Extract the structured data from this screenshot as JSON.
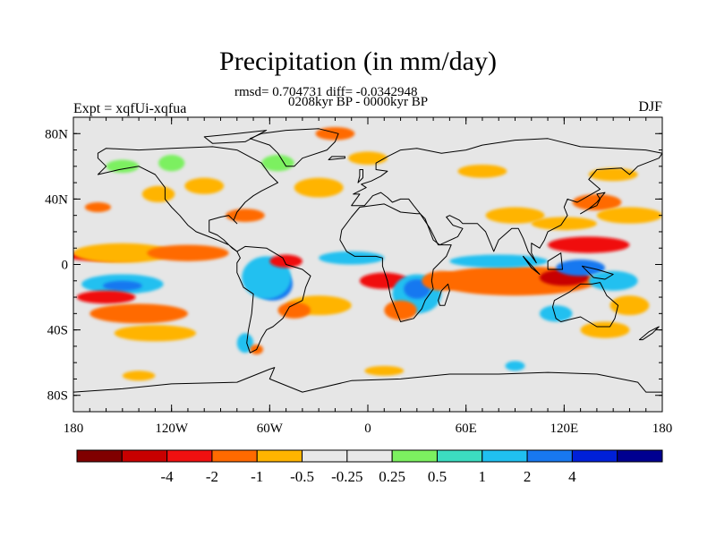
{
  "header": {
    "title": "Precipitation (in mm/day)",
    "stats": "rmsd= 0.704731 diff= -0.0342948",
    "subtitle": "0208kyr BP - 0000kyr BP",
    "left_label": "Expt = xqfUi-xqfua",
    "right_label": "DJF"
  },
  "map": {
    "projection": "cylindrical-equidistant",
    "lon_range": [
      -180,
      180
    ],
    "lat_range": [
      -90,
      90
    ],
    "x_ticks": [
      {
        "value": -180,
        "label": "180"
      },
      {
        "value": -120,
        "label": "120W"
      },
      {
        "value": -60,
        "label": "60W"
      },
      {
        "value": 0,
        "label": "0"
      },
      {
        "value": 60,
        "label": "60E"
      },
      {
        "value": 120,
        "label": "120E"
      },
      {
        "value": 180,
        "label": "180"
      }
    ],
    "y_ticks": [
      {
        "value": 80,
        "label": "80N"
      },
      {
        "value": 40,
        "label": "40N"
      },
      {
        "value": 0,
        "label": "0"
      },
      {
        "value": -40,
        "label": "40S"
      },
      {
        "value": -80,
        "label": "80S"
      }
    ],
    "background_color": "#e6e6e6",
    "coastline_color": "#000000"
  },
  "colorbar": {
    "colors": [
      "#800000",
      "#c80000",
      "#f01010",
      "#ff6a00",
      "#ffb400",
      "#e8e8e8",
      "#e8e8e8",
      "#7cf060",
      "#3cdcc0",
      "#20c0f0",
      "#1878f0",
      "#0020d8",
      "#000090"
    ],
    "labels": [
      "-4",
      "-2",
      "-1",
      "-0.5",
      "-0.25",
      "0.25",
      "0.5",
      "1",
      "2",
      "4"
    ]
  },
  "anomalies": [
    {
      "color": "#f01010",
      "lon": -160,
      "lat": 5,
      "rx": 25,
      "ry": 3
    },
    {
      "color": "#ffb400",
      "lon": -150,
      "lat": 7,
      "rx": 30,
      "ry": 6
    },
    {
      "color": "#ff6a00",
      "lon": -110,
      "lat": 7,
      "rx": 25,
      "ry": 5
    },
    {
      "color": "#20c0f0",
      "lon": -150,
      "lat": -12,
      "rx": 25,
      "ry": 6
    },
    {
      "color": "#1878f0",
      "lon": -150,
      "lat": -13,
      "rx": 12,
      "ry": 3
    },
    {
      "color": "#f01010",
      "lon": -160,
      "lat": -20,
      "rx": 18,
      "ry": 4
    },
    {
      "color": "#ff6a00",
      "lon": -140,
      "lat": -30,
      "rx": 30,
      "ry": 6
    },
    {
      "color": "#ffb400",
      "lon": -130,
      "lat": -42,
      "rx": 25,
      "ry": 5
    },
    {
      "color": "#ff6a00",
      "lon": -165,
      "lat": 35,
      "rx": 8,
      "ry": 3
    },
    {
      "color": "#ffb400",
      "lon": -128,
      "lat": 43,
      "rx": 10,
      "ry": 5
    },
    {
      "color": "#7cf060",
      "lon": -150,
      "lat": 60,
      "rx": 10,
      "ry": 4
    },
    {
      "color": "#7cf060",
      "lon": -120,
      "lat": 62,
      "rx": 8,
      "ry": 5
    },
    {
      "color": "#ffb400",
      "lon": -100,
      "lat": 48,
      "rx": 12,
      "ry": 5
    },
    {
      "color": "#ff6a00",
      "lon": -75,
      "lat": 30,
      "rx": 12,
      "ry": 4
    },
    {
      "color": "#7cf060",
      "lon": -55,
      "lat": 62,
      "rx": 10,
      "ry": 5
    },
    {
      "color": "#ffb400",
      "lon": -30,
      "lat": 47,
      "rx": 15,
      "ry": 6
    },
    {
      "color": "#ff6a00",
      "lon": -20,
      "lat": 80,
      "rx": 12,
      "ry": 4
    },
    {
      "color": "#ffb400",
      "lon": 0,
      "lat": 65,
      "rx": 12,
      "ry": 4
    },
    {
      "color": "#1878f0",
      "lon": -58,
      "lat": -12,
      "rx": 12,
      "ry": 10
    },
    {
      "color": "#20c0f0",
      "lon": -62,
      "lat": -8,
      "rx": 15,
      "ry": 13
    },
    {
      "color": "#f01010",
      "lon": -50,
      "lat": 2,
      "rx": 10,
      "ry": 4
    },
    {
      "color": "#ffb400",
      "lon": -30,
      "lat": -25,
      "rx": 20,
      "ry": 6
    },
    {
      "color": "#ff6a00",
      "lon": -45,
      "lat": -28,
      "rx": 10,
      "ry": 5
    },
    {
      "color": "#f01010",
      "lon": 10,
      "lat": -10,
      "rx": 15,
      "ry": 5
    },
    {
      "color": "#20c0f0",
      "lon": -10,
      "lat": 4,
      "rx": 20,
      "ry": 4
    },
    {
      "color": "#20c0f0",
      "lon": 30,
      "lat": -18,
      "rx": 15,
      "ry": 12
    },
    {
      "color": "#1878f0",
      "lon": 30,
      "lat": -15,
      "rx": 8,
      "ry": 6
    },
    {
      "color": "#ff6a00",
      "lon": 20,
      "lat": -28,
      "rx": 10,
      "ry": 6
    },
    {
      "color": "#ff6a00",
      "lon": 45,
      "lat": -10,
      "rx": 12,
      "ry": 6
    },
    {
      "color": "#f01010",
      "lon": 90,
      "lat": -10,
      "rx": 45,
      "ry": 6
    },
    {
      "color": "#ff6a00",
      "lon": 90,
      "lat": -10,
      "rx": 50,
      "ry": 9
    },
    {
      "color": "#c80000",
      "lon": 120,
      "lat": -8,
      "rx": 15,
      "ry": 5
    },
    {
      "color": "#20c0f0",
      "lon": 80,
      "lat": 2,
      "rx": 30,
      "ry": 4
    },
    {
      "color": "#1878f0",
      "lon": 130,
      "lat": -2,
      "rx": 15,
      "ry": 5
    },
    {
      "color": "#f01010",
      "lon": 135,
      "lat": 12,
      "rx": 25,
      "ry": 5
    },
    {
      "color": "#ffb400",
      "lon": 120,
      "lat": 25,
      "rx": 20,
      "ry": 4
    },
    {
      "color": "#ff6a00",
      "lon": 140,
      "lat": 38,
      "rx": 15,
      "ry": 5
    },
    {
      "color": "#ffb400",
      "lon": 160,
      "lat": 30,
      "rx": 20,
      "ry": 5
    },
    {
      "color": "#ffb400",
      "lon": 145,
      "lat": -40,
      "rx": 15,
      "ry": 5
    },
    {
      "color": "#ffb400",
      "lon": 90,
      "lat": 30,
      "rx": 18,
      "ry": 5
    },
    {
      "color": "#20c0f0",
      "lon": 115,
      "lat": -30,
      "rx": 10,
      "ry": 5
    },
    {
      "color": "#ffb400",
      "lon": 160,
      "lat": -25,
      "rx": 12,
      "ry": 6
    },
    {
      "color": "#20c0f0",
      "lon": 150,
      "lat": -10,
      "rx": 15,
      "ry": 6
    },
    {
      "color": "#20c0f0",
      "lon": -75,
      "lat": -48,
      "rx": 5,
      "ry": 6
    },
    {
      "color": "#ff6a00",
      "lon": -68,
      "lat": -52,
      "rx": 4,
      "ry": 3
    },
    {
      "color": "#ffb400",
      "lon": 70,
      "lat": 57,
      "rx": 15,
      "ry": 4
    },
    {
      "color": "#ffb400",
      "lon": 10,
      "lat": -65,
      "rx": 12,
      "ry": 3
    },
    {
      "color": "#ffb400",
      "lon": -140,
      "lat": -68,
      "rx": 10,
      "ry": 3
    },
    {
      "color": "#20c0f0",
      "lon": 90,
      "lat": -62,
      "rx": 6,
      "ry": 3
    },
    {
      "color": "#ffb400",
      "lon": 150,
      "lat": 55,
      "rx": 15,
      "ry": 4
    }
  ],
  "land": [
    [
      [
        -165,
        68
      ],
      [
        -160,
        71
      ],
      [
        -140,
        70
      ],
      [
        -120,
        71
      ],
      [
        -95,
        72
      ],
      [
        -80,
        70
      ],
      [
        -65,
        62
      ],
      [
        -60,
        55
      ],
      [
        -55,
        50
      ],
      [
        -65,
        45
      ],
      [
        -70,
        42
      ],
      [
        -75,
        38
      ],
      [
        -80,
        32
      ],
      [
        -82,
        27
      ],
      [
        -80,
        25
      ],
      [
        -85,
        30
      ],
      [
        -90,
        29
      ],
      [
        -97,
        27
      ],
      [
        -97,
        20
      ],
      [
        -92,
        18
      ],
      [
        -88,
        15
      ],
      [
        -83,
        10
      ],
      [
        -80,
        8
      ],
      [
        -85,
        12
      ],
      [
        -92,
        15
      ],
      [
        -105,
        20
      ],
      [
        -110,
        24
      ],
      [
        -115,
        30
      ],
      [
        -120,
        35
      ],
      [
        -124,
        40
      ],
      [
        -124,
        47
      ],
      [
        -130,
        55
      ],
      [
        -140,
        60
      ],
      [
        -152,
        58
      ],
      [
        -165,
        55
      ],
      [
        -160,
        60
      ],
      [
        -165,
        65
      ]
    ],
    [
      [
        -80,
        8
      ],
      [
        -75,
        11
      ],
      [
        -62,
        10
      ],
      [
        -52,
        4
      ],
      [
        -50,
        0
      ],
      [
        -40,
        -3
      ],
      [
        -35,
        -7
      ],
      [
        -38,
        -14
      ],
      [
        -40,
        -22
      ],
      [
        -48,
        -26
      ],
      [
        -52,
        -33
      ],
      [
        -58,
        -38
      ],
      [
        -62,
        -40
      ],
      [
        -65,
        -45
      ],
      [
        -68,
        -52
      ],
      [
        -72,
        -54
      ],
      [
        -74,
        -48
      ],
      [
        -73,
        -40
      ],
      [
        -71,
        -30
      ],
      [
        -70,
        -18
      ],
      [
        -76,
        -14
      ],
      [
        -80,
        -5
      ],
      [
        -80,
        1
      ],
      [
        -78,
        4
      ]
    ],
    [
      [
        -50,
        60
      ],
      [
        -45,
        60
      ],
      [
        -40,
        65
      ],
      [
        -25,
        70
      ],
      [
        -20,
        75
      ],
      [
        -18,
        80
      ],
      [
        -30,
        83
      ],
      [
        -50,
        82
      ],
      [
        -65,
        80
      ],
      [
        -72,
        77
      ],
      [
        -60,
        73
      ],
      [
        -55,
        68
      ]
    ],
    [
      [
        -10,
        36
      ],
      [
        -5,
        43
      ],
      [
        -9,
        43
      ],
      [
        -1,
        47
      ],
      [
        -4,
        49
      ],
      [
        2,
        51
      ],
      [
        8,
        54
      ],
      [
        12,
        57
      ],
      [
        5,
        58
      ],
      [
        5,
        62
      ],
      [
        12,
        66
      ],
      [
        20,
        70
      ],
      [
        30,
        71
      ],
      [
        45,
        68
      ],
      [
        60,
        70
      ],
      [
        70,
        73
      ],
      [
        90,
        76
      ],
      [
        110,
        77
      ],
      [
        130,
        72
      ],
      [
        150,
        71
      ],
      [
        170,
        70
      ],
      [
        180,
        68
      ],
      [
        178,
        65
      ],
      [
        165,
        60
      ],
      [
        160,
        55
      ],
      [
        155,
        59
      ],
      [
        140,
        58
      ],
      [
        135,
        52
      ],
      [
        142,
        46
      ],
      [
        135,
        42
      ],
      [
        128,
        38
      ],
      [
        122,
        40
      ],
      [
        120,
        35
      ],
      [
        122,
        30
      ],
      [
        118,
        24
      ],
      [
        110,
        20
      ],
      [
        108,
        15
      ],
      [
        105,
        10
      ],
      [
        100,
        13
      ],
      [
        100,
        7
      ],
      [
        103,
        1
      ],
      [
        98,
        8
      ],
      [
        95,
        16
      ],
      [
        92,
        22
      ],
      [
        88,
        22
      ],
      [
        80,
        15
      ],
      [
        77,
        8
      ],
      [
        72,
        20
      ],
      [
        67,
        25
      ],
      [
        58,
        25
      ],
      [
        56,
        27
      ],
      [
        50,
        30
      ],
      [
        48,
        29
      ],
      [
        52,
        24
      ],
      [
        58,
        22
      ],
      [
        55,
        17
      ],
      [
        44,
        12
      ],
      [
        40,
        15
      ],
      [
        35,
        28
      ],
      [
        32,
        31
      ],
      [
        28,
        36
      ],
      [
        25,
        40
      ],
      [
        20,
        40
      ],
      [
        15,
        38
      ],
      [
        12,
        41
      ],
      [
        8,
        44
      ],
      [
        3,
        42
      ],
      [
        -2,
        36
      ],
      [
        -6,
        36
      ]
    ],
    [
      [
        -17,
        15
      ],
      [
        -16,
        21
      ],
      [
        -10,
        29
      ],
      [
        -5,
        35
      ],
      [
        10,
        37
      ],
      [
        20,
        32
      ],
      [
        30,
        31
      ],
      [
        32,
        31
      ],
      [
        34,
        28
      ],
      [
        38,
        22
      ],
      [
        43,
        12
      ],
      [
        51,
        12
      ],
      [
        48,
        5
      ],
      [
        40,
        -3
      ],
      [
        39,
        -10
      ],
      [
        40,
        -15
      ],
      [
        35,
        -22
      ],
      [
        33,
        -27
      ],
      [
        28,
        -33
      ],
      [
        20,
        -35
      ],
      [
        18,
        -30
      ],
      [
        14,
        -20
      ],
      [
        12,
        -10
      ],
      [
        9,
        -1
      ],
      [
        9,
        4
      ],
      [
        5,
        5
      ],
      [
        -3,
        5
      ],
      [
        -8,
        5
      ],
      [
        -13,
        8
      ]
    ],
    [
      [
        114,
        -22
      ],
      [
        123,
        -17
      ],
      [
        130,
        -12
      ],
      [
        137,
        -12
      ],
      [
        142,
        -11
      ],
      [
        146,
        -19
      ],
      [
        153,
        -25
      ],
      [
        151,
        -33
      ],
      [
        148,
        -38
      ],
      [
        140,
        -38
      ],
      [
        135,
        -35
      ],
      [
        130,
        -32
      ],
      [
        118,
        -35
      ],
      [
        115,
        -33
      ],
      [
        113,
        -26
      ]
    ],
    [
      [
        44,
        -25
      ],
      [
        47,
        -25
      ],
      [
        50,
        -16
      ],
      [
        49,
        -12
      ],
      [
        45,
        -16
      ],
      [
        43,
        -22
      ]
    ],
    [
      [
        -180,
        -78
      ],
      [
        -150,
        -76
      ],
      [
        -120,
        -73
      ],
      [
        -80,
        -72
      ],
      [
        -60,
        -64
      ],
      [
        -57,
        -63
      ],
      [
        -60,
        -70
      ],
      [
        -40,
        -78
      ],
      [
        -10,
        -71
      ],
      [
        20,
        -70
      ],
      [
        50,
        -67
      ],
      [
        80,
        -67
      ],
      [
        110,
        -66
      ],
      [
        140,
        -67
      ],
      [
        165,
        -72
      ],
      [
        170,
        -78
      ],
      [
        180,
        -78
      ],
      [
        180,
        -90
      ],
      [
        -180,
        -90
      ]
    ],
    [
      [
        95,
        5
      ],
      [
        105,
        -6
      ],
      [
        100,
        -2
      ]
    ],
    [
      [
        110,
        2
      ],
      [
        118,
        7
      ],
      [
        119,
        -3
      ],
      [
        110,
        -3
      ]
    ],
    [
      [
        131,
        -1
      ],
      [
        140,
        -3
      ],
      [
        150,
        -6
      ],
      [
        145,
        -9
      ],
      [
        138,
        -8
      ]
    ],
    [
      [
        130,
        31
      ],
      [
        135,
        34
      ],
      [
        140,
        36
      ],
      [
        142,
        40
      ],
      [
        140,
        43
      ],
      [
        145,
        44
      ],
      [
        140,
        38
      ],
      [
        135,
        34
      ]
    ],
    [
      [
        -6,
        50
      ],
      [
        -3,
        53
      ],
      [
        -3,
        58
      ],
      [
        -5,
        58
      ],
      [
        -5,
        54
      ]
    ],
    [
      [
        -24,
        64
      ],
      [
        -14,
        65
      ],
      [
        -14,
        66
      ],
      [
        -22,
        66
      ]
    ],
    [
      [
        166,
        -46
      ],
      [
        172,
        -41
      ],
      [
        178,
        -38
      ],
      [
        174,
        -42
      ],
      [
        168,
        -46
      ]
    ],
    [
      [
        -80,
        80
      ],
      [
        -62,
        82
      ],
      [
        -75,
        75
      ],
      [
        -95,
        74
      ],
      [
        -100,
        78
      ]
    ],
    [
      [
        100,
        -2
      ],
      [
        95,
        5
      ]
    ]
  ]
}
